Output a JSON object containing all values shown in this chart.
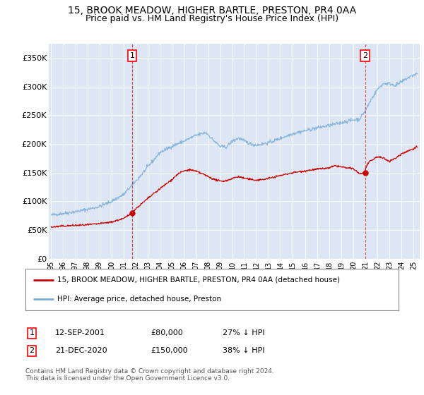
{
  "title": "15, BROOK MEADOW, HIGHER BARTLE, PRESTON, PR4 0AA",
  "subtitle": "Price paid vs. HM Land Registry's House Price Index (HPI)",
  "title_fontsize": 10,
  "subtitle_fontsize": 9,
  "plot_bg_color": "#dce6f5",
  "ylabel_ticks": [
    "£0",
    "£50K",
    "£100K",
    "£150K",
    "£200K",
    "£250K",
    "£300K",
    "£350K"
  ],
  "ytick_values": [
    0,
    50000,
    100000,
    150000,
    200000,
    250000,
    300000,
    350000
  ],
  "ylim": [
    0,
    375000
  ],
  "xlim_start": 1994.8,
  "xlim_end": 2025.5,
  "xtick_years": [
    1995,
    1996,
    1997,
    1998,
    1999,
    2000,
    2001,
    2002,
    2003,
    2004,
    2005,
    2006,
    2007,
    2008,
    2009,
    2010,
    2011,
    2012,
    2013,
    2014,
    2015,
    2016,
    2017,
    2018,
    2019,
    2020,
    2021,
    2022,
    2023,
    2024,
    2025
  ],
  "xtick_labels": [
    "95",
    "96",
    "97",
    "98",
    "99",
    "00",
    "01",
    "02",
    "03",
    "04",
    "05",
    "06",
    "07",
    "08",
    "09",
    "10",
    "11",
    "12",
    "13",
    "14",
    "15",
    "16",
    "17",
    "18",
    "19",
    "20",
    "21",
    "22",
    "23",
    "24",
    "25"
  ],
  "legend_label_red": "15, BROOK MEADOW, HIGHER BARTLE, PRESTON, PR4 0AA (detached house)",
  "legend_label_blue": "HPI: Average price, detached house, Preston",
  "sale1_date": 2001.7,
  "sale1_price": 80000,
  "sale2_date": 2020.97,
  "sale2_price": 150000,
  "footnote": "Contains HM Land Registry data © Crown copyright and database right 2024.\nThis data is licensed under the Open Government Licence v3.0.",
  "red_color": "#cc0000",
  "blue_color": "#7aadd4",
  "grid_color": "#ffffff",
  "vline_color": "#cc0000"
}
